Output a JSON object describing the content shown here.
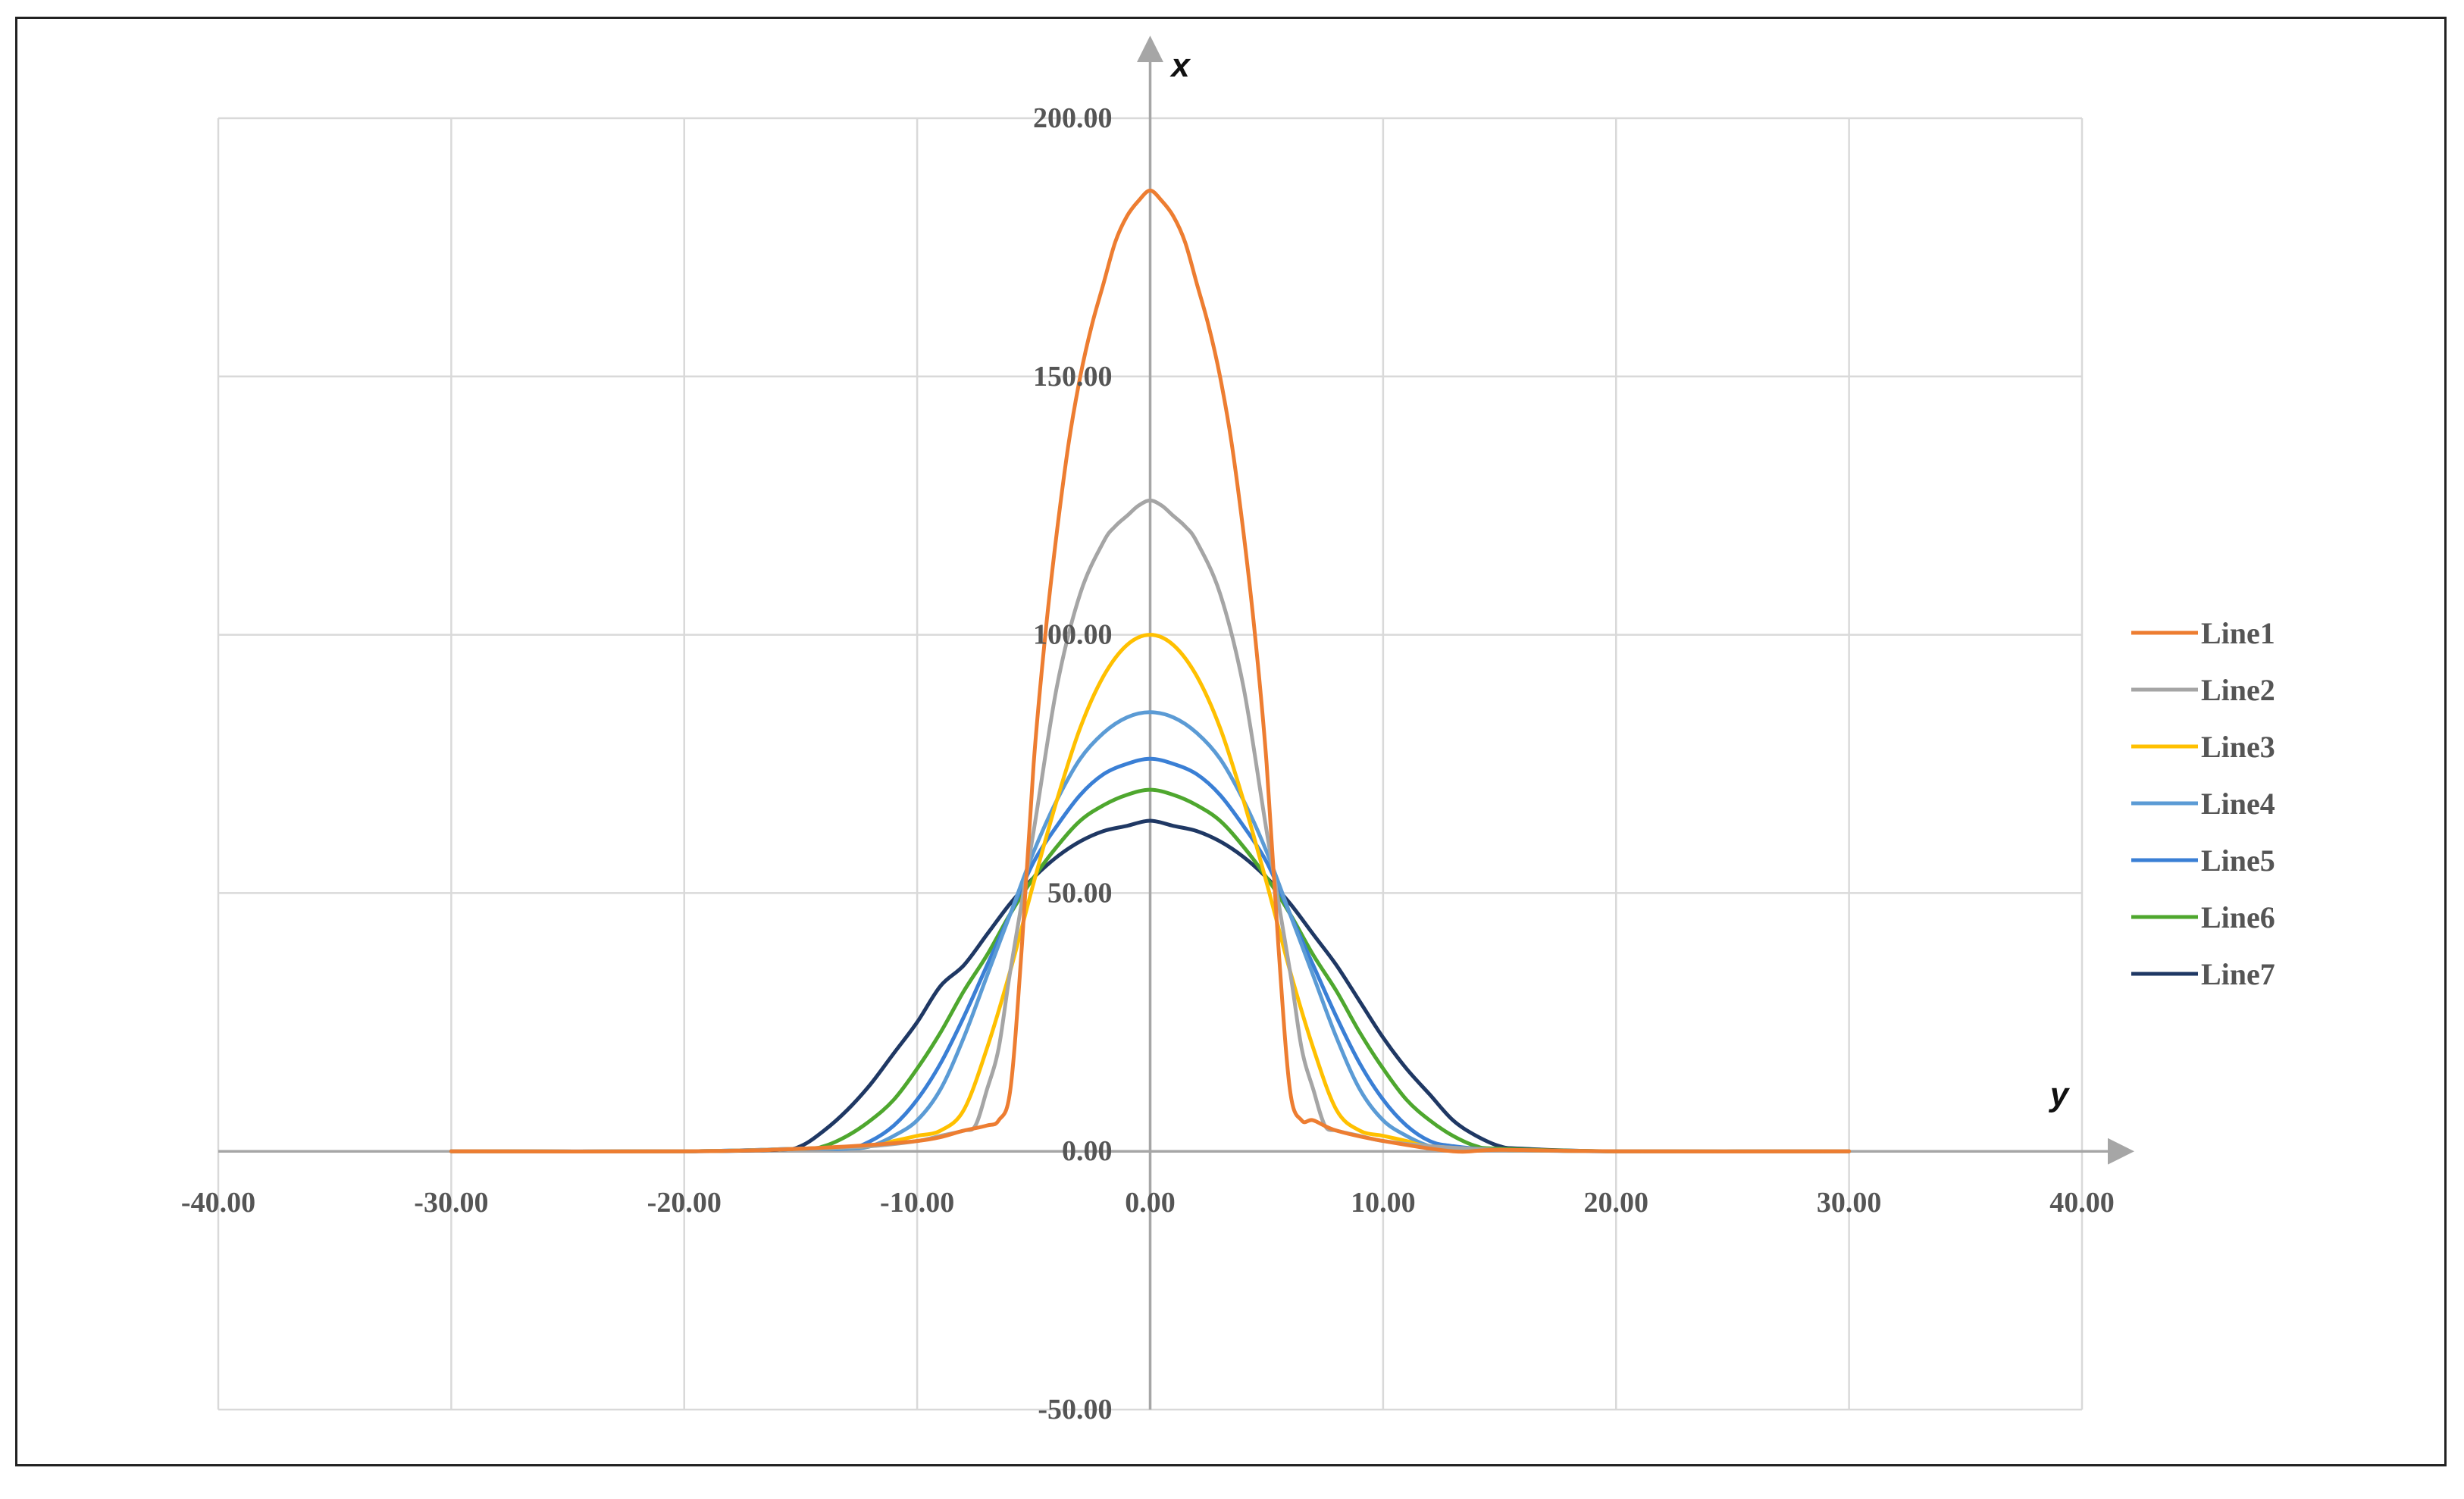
{
  "chart_data": {
    "type": "line",
    "title": "",
    "xlabel": "y",
    "ylabel": "x",
    "xlim": [
      -40,
      40
    ],
    "ylim": [
      -50,
      200
    ],
    "x_ticks": [
      "-40.00",
      "-30.00",
      "-20.00",
      "-10.00",
      "0.00",
      "10.00",
      "20.00",
      "30.00",
      "40.00"
    ],
    "y_ticks": [
      "-50.00",
      "0.00",
      "50.00",
      "100.00",
      "150.00",
      "200.00"
    ],
    "grid": true,
    "legend_position": "right",
    "series": [
      {
        "name": "Line1",
        "color": "#ED7D31",
        "x": [
          -30,
          -20,
          -15,
          -10,
          -8,
          -7,
          -6.5,
          -6,
          -5.5,
          -5,
          -4.5,
          -4,
          -3.5,
          -3,
          -2.5,
          -2,
          -1.5,
          -1,
          -0.5,
          0,
          0.5,
          1,
          1.5,
          2,
          2.5,
          3,
          3.5,
          4,
          4.5,
          5,
          5.5,
          6,
          6.5,
          7,
          8,
          10,
          13,
          15,
          20,
          30
        ],
        "y": [
          0,
          0,
          0.5,
          2,
          4,
          5,
          6,
          12,
          40,
          75,
          100,
          120,
          137,
          150,
          160,
          168,
          176,
          181,
          184,
          186,
          184,
          181,
          176,
          168,
          160,
          150,
          137,
          120,
          100,
          75,
          40,
          12,
          6,
          6,
          4,
          2,
          0,
          0.3,
          0,
          0
        ]
      },
      {
        "name": "Line2",
        "color": "#A5A5A5",
        "x": [
          -30,
          -20,
          -15,
          -12,
          -10,
          -9,
          -8,
          -7.5,
          -7,
          -6.5,
          -6,
          -5,
          -4,
          -3,
          -2,
          -1.5,
          -1,
          -0.5,
          0,
          0.5,
          1,
          1.5,
          2,
          3,
          4,
          5,
          6,
          6.5,
          7,
          7.5,
          8,
          9,
          10,
          12,
          15,
          20,
          30
        ],
        "y": [
          0,
          0,
          0.5,
          1,
          2,
          3,
          4,
          5,
          12,
          20,
          35,
          62,
          90,
          108,
          118,
          121,
          123,
          125,
          126,
          125,
          123,
          121,
          118,
          108,
          90,
          62,
          35,
          20,
          12,
          5,
          4,
          3,
          2,
          1,
          0.3,
          0,
          0
        ]
      },
      {
        "name": "Line3",
        "color": "#FFC000",
        "x": [
          -30,
          -20,
          -15,
          -12,
          -11,
          -10,
          -9,
          -8,
          -7,
          -6,
          -5,
          -4,
          -3,
          -2,
          -1,
          0,
          1,
          2,
          3,
          4,
          5,
          6,
          7,
          8,
          9,
          10,
          11,
          12,
          15,
          20,
          30
        ],
        "y": [
          0,
          0,
          0.5,
          1,
          2,
          3,
          4,
          8,
          20,
          35,
          52,
          68,
          82,
          92,
          98,
          100,
          98,
          92,
          82,
          68,
          52,
          35,
          20,
          8,
          4,
          3,
          2,
          1,
          0.3,
          0,
          0
        ]
      },
      {
        "name": "Line4",
        "color": "#5B9BD5",
        "x": [
          -30,
          -20,
          -15,
          -13,
          -12,
          -11,
          -10,
          -9,
          -8,
          -7,
          -6,
          -5,
          -4,
          -3,
          -2,
          -1,
          0,
          1,
          2,
          3,
          4,
          5,
          6,
          7,
          8,
          9,
          10,
          11,
          12,
          13,
          15,
          20,
          30
        ],
        "y": [
          0,
          0,
          0.5,
          0.5,
          1,
          3,
          6,
          12,
          22,
          34,
          46,
          58,
          68,
          76,
          81,
          84,
          85,
          84,
          81,
          76,
          68,
          58,
          46,
          34,
          22,
          12,
          6,
          3,
          1,
          0.5,
          0.3,
          0,
          0
        ]
      },
      {
        "name": "Line5",
        "color": "#3A7FD5",
        "x": [
          -30,
          -20,
          -15,
          -13,
          -12,
          -11,
          -10,
          -9,
          -8,
          -7,
          -6,
          -5,
          -4,
          -3,
          -2,
          -1,
          0,
          1,
          2,
          3,
          4,
          5,
          6,
          7,
          8,
          9,
          10,
          11,
          12,
          13,
          15,
          20,
          30
        ],
        "y": [
          0,
          0,
          0.5,
          0.5,
          2,
          5,
          10,
          17,
          26,
          36,
          46,
          56,
          63,
          69,
          73,
          75,
          76,
          75,
          73,
          69,
          63,
          56,
          46,
          36,
          26,
          17,
          10,
          5,
          2,
          1,
          0.3,
          0,
          0
        ]
      },
      {
        "name": "Line6",
        "color": "#4EA72E",
        "x": [
          -30,
          -20,
          -15,
          -14,
          -13,
          -12,
          -11,
          -10,
          -9,
          -8,
          -7,
          -6,
          -5,
          -4,
          -3,
          -2,
          -1,
          0,
          1,
          2,
          3,
          4,
          5,
          6,
          7,
          8,
          9,
          10,
          11,
          12,
          13,
          14,
          15,
          20,
          30
        ],
        "y": [
          0,
          0,
          0.5,
          1,
          3,
          6,
          10,
          16,
          23,
          31,
          38,
          46,
          53,
          59,
          64,
          67,
          69,
          70,
          69,
          67,
          64,
          59,
          53,
          46,
          38,
          31,
          23,
          16,
          10,
          6,
          3,
          1,
          0.5,
          0,
          0
        ]
      },
      {
        "name": "Line7",
        "color": "#1F3864",
        "x": [
          -30,
          -20,
          -16,
          -15,
          -14,
          -13,
          -12,
          -11,
          -10,
          -9,
          -8,
          -7,
          -6,
          -5,
          -4,
          -3,
          -2,
          -1,
          0,
          1,
          2,
          3,
          4,
          5,
          6,
          7,
          8,
          9,
          10,
          11,
          12,
          13,
          14,
          15,
          16,
          20,
          30
        ],
        "y": [
          0,
          0,
          0.3,
          1,
          4,
          8,
          13,
          19,
          25,
          32,
          36,
          42,
          48,
          53,
          57,
          60,
          62,
          63,
          64,
          63,
          62,
          60,
          57,
          53,
          48,
          42,
          36,
          29,
          22,
          16,
          11,
          6,
          3,
          1,
          0.5,
          0,
          0
        ]
      }
    ]
  }
}
